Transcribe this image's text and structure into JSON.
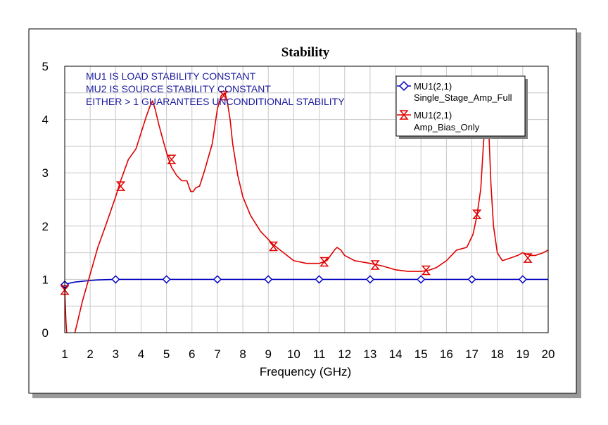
{
  "chart_data": {
    "type": "line",
    "title": "Stability",
    "xlabel": "Frequency (GHz)",
    "ylabel": "",
    "xlim": [
      1,
      20
    ],
    "ylim": [
      0,
      5
    ],
    "x_ticks": [
      "1",
      "2",
      "3",
      "4",
      "5",
      "6",
      "7",
      "8",
      "9",
      "10",
      "11",
      "12",
      "13",
      "14",
      "15",
      "16",
      "17",
      "18",
      "19",
      "20"
    ],
    "y_ticks": [
      "0",
      "1",
      "2",
      "3",
      "4",
      "5"
    ],
    "grid": true,
    "legend_position": "top-right",
    "annotations": [
      "MU1 IS LOAD STABILITY CONSTANT",
      "MU2 IS SOURCE STABILITY CONSTANT",
      "EITHER > 1 GUARANTEES UNCONDITIONAL STABILITY"
    ],
    "series": [
      {
        "name": "MU1(2,1)",
        "sublabel": "Single_Stage_Amp_Full",
        "color": "#0000c0",
        "marker": "diamond",
        "x": [
          1,
          1.2,
          1.4,
          1.6,
          1.8,
          2,
          2.3,
          2.6,
          3,
          3.5,
          4,
          5,
          6,
          7,
          8,
          9,
          10,
          11,
          12,
          13,
          14,
          15,
          16,
          17,
          18,
          19,
          20
        ],
        "y": [
          0.9,
          0.93,
          0.95,
          0.96,
          0.97,
          0.98,
          0.99,
          0.995,
          1.0,
          1.0,
          1.0,
          1.0,
          1.0,
          1.0,
          1.0,
          1.0,
          1.0,
          1.0,
          1.0,
          1.0,
          1.0,
          1.0,
          1.0,
          1.0,
          1.0,
          1.0,
          1.0
        ],
        "marker_x": [
          1,
          3,
          5,
          7,
          9,
          11,
          13,
          15,
          17,
          19
        ],
        "marker_y": [
          0.9,
          1.0,
          1.0,
          1.0,
          1.0,
          1.0,
          1.0,
          1.0,
          1.0,
          1.0
        ]
      },
      {
        "name": "MU1(2,1)",
        "sublabel": "Amp_Bias_Only",
        "color": "#e00000",
        "marker": "hourglass",
        "x": [
          1,
          1.05,
          1.1,
          1.2,
          1.3,
          1.5,
          1.7,
          2,
          2.3,
          2.6,
          3,
          3.2,
          3.5,
          3.8,
          4,
          4.2,
          4.35,
          4.45,
          4.55,
          4.7,
          4.9,
          5.05,
          5.2,
          5.4,
          5.6,
          5.8,
          5.95,
          6.05,
          6.15,
          6.3,
          6.5,
          6.8,
          7.0,
          7.15,
          7.3,
          7.4,
          7.5,
          7.6,
          7.8,
          8.0,
          8.3,
          8.7,
          9.2,
          9.6,
          10,
          10.5,
          11,
          11.3,
          11.6,
          11.7,
          11.85,
          12,
          12.4,
          13,
          13.5,
          14,
          14.5,
          15,
          15.3,
          15.6,
          16,
          16.4,
          16.8,
          17.05,
          17.2,
          17.35,
          17.45,
          17.55,
          17.65,
          17.75,
          17.85,
          18.0,
          18.2,
          18.5,
          18.8,
          19.0,
          19.3,
          19.5,
          19.8,
          20
        ],
        "y": [
          0.8,
          0.2,
          -0.2,
          -0.5,
          -0.2,
          0.2,
          0.6,
          1.1,
          1.6,
          2.0,
          2.55,
          2.85,
          3.25,
          3.45,
          3.75,
          4.05,
          4.25,
          4.35,
          4.2,
          3.9,
          3.55,
          3.3,
          3.1,
          2.95,
          2.85,
          2.85,
          2.65,
          2.65,
          2.72,
          2.75,
          3.05,
          3.55,
          4.2,
          4.45,
          4.5,
          4.3,
          4.0,
          3.55,
          2.95,
          2.55,
          2.2,
          1.9,
          1.65,
          1.5,
          1.35,
          1.3,
          1.3,
          1.35,
          1.55,
          1.6,
          1.55,
          1.45,
          1.35,
          1.3,
          1.25,
          1.18,
          1.15,
          1.15,
          1.17,
          1.22,
          1.35,
          1.55,
          1.6,
          1.85,
          2.2,
          2.7,
          3.5,
          4.15,
          4.0,
          2.8,
          2.0,
          1.5,
          1.35,
          1.4,
          1.45,
          1.5,
          1.45,
          1.45,
          1.5,
          1.55
        ],
        "marker_x": [
          1,
          3.2,
          5.2,
          7.25,
          9.2,
          11.2,
          13.2,
          15.2,
          17.2,
          19.2
        ],
        "marker_y": [
          0.8,
          2.75,
          3.25,
          4.45,
          1.62,
          1.33,
          1.27,
          1.17,
          2.22,
          1.4
        ]
      }
    ]
  }
}
